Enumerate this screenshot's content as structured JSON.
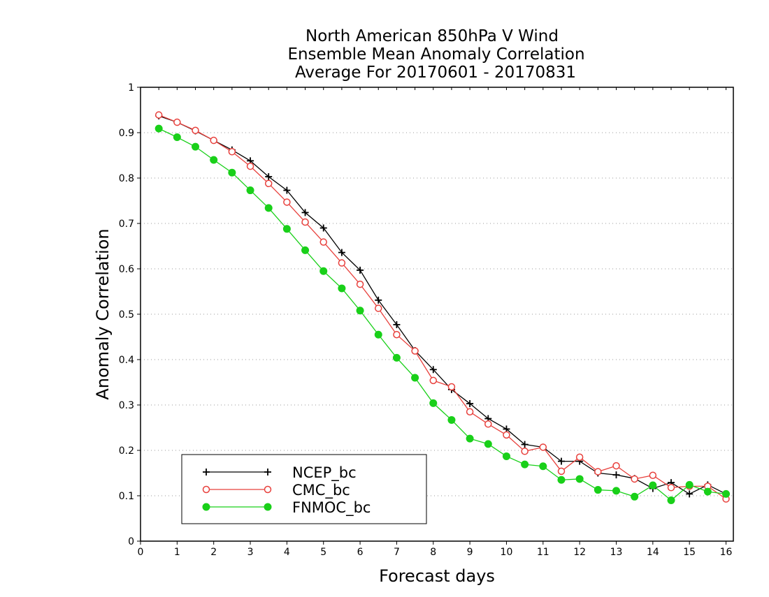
{
  "chart_data": {
    "type": "line",
    "title": [
      "North American 850hPa V Wind",
      "Ensemble Mean Anomaly Correlation",
      "Average For 20170601 - 20170831"
    ],
    "xlabel": "Forecast days",
    "ylabel": "Anomaly Correlation",
    "xlim": [
      0,
      16.2
    ],
    "ylim": [
      0,
      1
    ],
    "xticks": [
      "0",
      "1",
      "2",
      "3",
      "4",
      "5",
      "6",
      "7",
      "8",
      "9",
      "10",
      "11",
      "12",
      "13",
      "14",
      "15",
      "16"
    ],
    "yticks": [
      "0",
      "0.1",
      "0.2",
      "0.3",
      "0.4",
      "0.5",
      "0.6",
      "0.7",
      "0.8",
      "0.9",
      "1"
    ],
    "grid": "horizontal dotted",
    "legend_position": "bottom-left",
    "x": [
      0.5,
      1,
      1.5,
      2,
      2.5,
      3,
      3.5,
      4,
      4.5,
      5,
      5.5,
      6,
      6.5,
      7,
      7.5,
      8,
      8.5,
      9,
      9.5,
      10,
      10.5,
      11,
      11.5,
      12,
      12.5,
      13,
      13.5,
      14,
      14.5,
      15,
      15.5,
      16
    ],
    "series": [
      {
        "name": "NCEP_bc",
        "color": "#000000",
        "marker": "plus",
        "values": [
          0.937,
          0.923,
          0.904,
          0.883,
          0.862,
          0.838,
          0.803,
          0.773,
          0.724,
          0.69,
          0.636,
          0.597,
          0.531,
          0.477,
          0.42,
          0.378,
          0.334,
          0.303,
          0.27,
          0.247,
          0.213,
          0.207,
          0.176,
          0.176,
          0.15,
          0.146,
          0.138,
          0.116,
          0.129,
          0.104,
          0.124,
          0.104
        ]
      },
      {
        "name": "CMC_bc",
        "color": "#e8403c",
        "marker": "open-circle",
        "values": [
          0.939,
          0.923,
          0.905,
          0.883,
          0.858,
          0.826,
          0.788,
          0.747,
          0.703,
          0.659,
          0.613,
          0.566,
          0.513,
          0.455,
          0.419,
          0.354,
          0.34,
          0.285,
          0.258,
          0.234,
          0.198,
          0.207,
          0.154,
          0.185,
          0.153,
          0.166,
          0.137,
          0.145,
          0.118,
          0.121,
          0.121,
          0.093
        ]
      },
      {
        "name": "FNMOC_bc",
        "color": "#19d019",
        "marker": "filled-circle",
        "values": [
          0.909,
          0.89,
          0.869,
          0.84,
          0.812,
          0.773,
          0.734,
          0.688,
          0.641,
          0.595,
          0.557,
          0.508,
          0.455,
          0.404,
          0.36,
          0.304,
          0.267,
          0.226,
          0.214,
          0.187,
          0.169,
          0.165,
          0.135,
          0.137,
          0.113,
          0.111,
          0.098,
          0.123,
          0.09,
          0.124,
          0.109,
          0.104
        ]
      }
    ]
  }
}
